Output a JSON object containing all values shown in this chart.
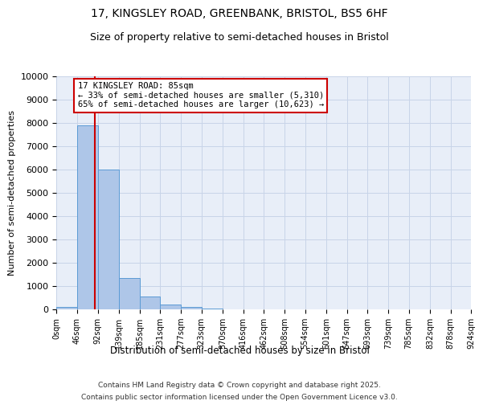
{
  "title_line1": "17, KINGSLEY ROAD, GREENBANK, BRISTOL, BS5 6HF",
  "title_line2": "Size of property relative to semi-detached houses in Bristol",
  "xlabel": "Distribution of semi-detached houses by size in Bristol",
  "ylabel": "Number of semi-detached properties",
  "annotation_title": "17 KINGSLEY ROAD: 85sqm",
  "annotation_line2": "← 33% of semi-detached houses are smaller (5,310)",
  "annotation_line3": "65% of semi-detached houses are larger (10,623) →",
  "footer_line1": "Contains HM Land Registry data © Crown copyright and database right 2025.",
  "footer_line2": "Contains public sector information licensed under the Open Government Licence v3.0.",
  "property_size_sqm": 85,
  "bin_edges": [
    0,
    46,
    92,
    139,
    185,
    231,
    277,
    323,
    370,
    416,
    462,
    508,
    554,
    601,
    647,
    693,
    739,
    785,
    832,
    878,
    924
  ],
  "bar_heights": [
    100,
    7900,
    6000,
    1350,
    550,
    200,
    100,
    30,
    5,
    2,
    0,
    0,
    0,
    0,
    0,
    0,
    0,
    0,
    0,
    0
  ],
  "bar_color": "#aec6e8",
  "bar_edge_color": "#5b9bd5",
  "vline_color": "#cc0000",
  "vline_x": 85,
  "ylim": [
    0,
    10000
  ],
  "yticks": [
    0,
    1000,
    2000,
    3000,
    4000,
    5000,
    6000,
    7000,
    8000,
    9000,
    10000
  ],
  "grid_color": "#c8d4e8",
  "annotation_box_color": "#cc0000",
  "background_color": "#e8eef8"
}
